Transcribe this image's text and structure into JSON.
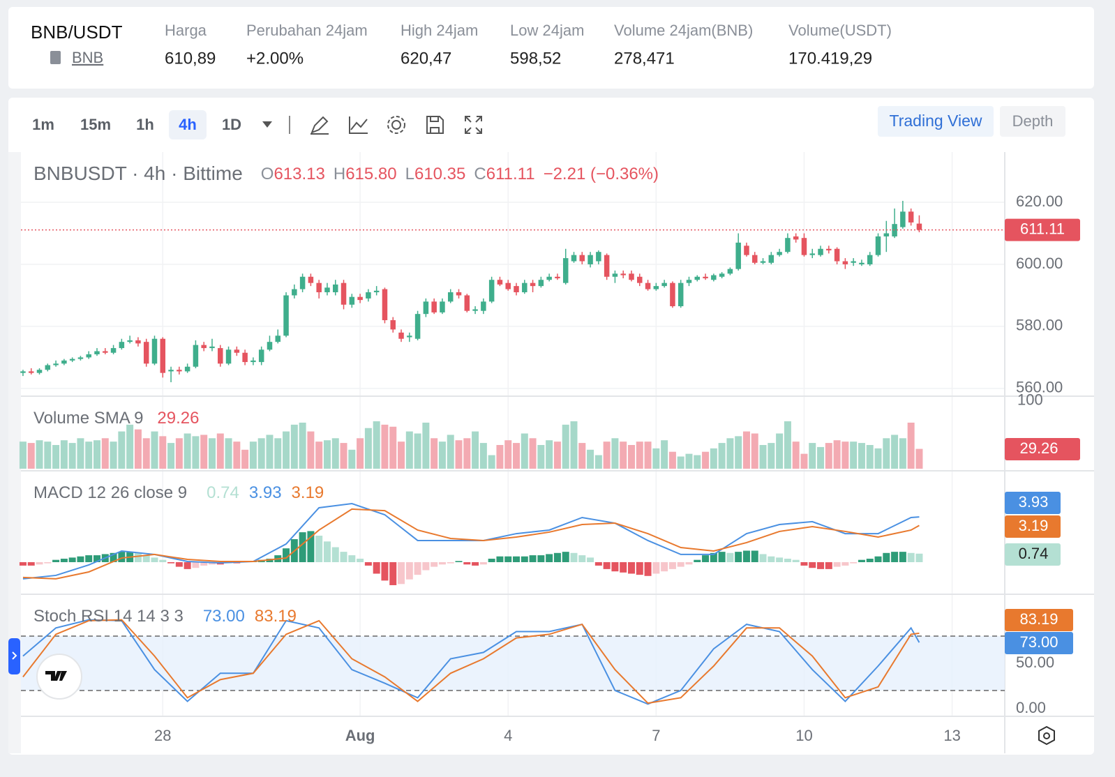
{
  "header": {
    "pair": "BNB/USDT",
    "coin": "BNB",
    "stats": [
      {
        "label": "Harga",
        "value": "610,89"
      },
      {
        "label": "Perubahan 24jam",
        "value": "+2.00%",
        "color": "#3db37f"
      },
      {
        "label": "High 24jam",
        "value": "620,47"
      },
      {
        "label": "Low 24jam",
        "value": "598,52"
      },
      {
        "label": "Volume 24jam(BNB)",
        "value": "278,471"
      },
      {
        "label": "Volume(USDT)",
        "value": "170.419,29"
      }
    ]
  },
  "toolbar": {
    "intervals": [
      "1m",
      "15m",
      "1h",
      "4h",
      "1D"
    ],
    "active_index": 3,
    "tabs": [
      "Trading View",
      "Depth"
    ]
  },
  "chart_data": {
    "type": "candlestick",
    "title": "BNBUSDT · 4h · Bittime",
    "legend": [
      {
        "key": "O",
        "value": "613.13"
      },
      {
        "key": "H",
        "value": "615.80"
      },
      {
        "key": "L",
        "value": "610.35"
      },
      {
        "key": "C",
        "value": "611.11"
      }
    ],
    "change": "−2.21 (−0.36%)",
    "colors": {
      "up": "#3fae8c",
      "down": "#e5545f",
      "volume_up": "#a6d8c9",
      "volume_down": "#f3aab2"
    },
    "xlim": [
      -0.25,
      119.4
    ],
    "xticks": [
      {
        "value": 17,
        "label": "28"
      },
      {
        "value": 41,
        "label": "Aug"
      },
      {
        "value": 59,
        "label": "4"
      },
      {
        "value": 77,
        "label": "7"
      },
      {
        "value": 95,
        "label": "10"
      },
      {
        "value": 113,
        "label": "13"
      }
    ],
    "ylim": [
      557.5,
      636.2
    ],
    "yticks": [
      {
        "value": 560,
        "label": "560.00"
      },
      {
        "value": 580,
        "label": "580.00"
      },
      {
        "value": 600,
        "label": "600.00"
      },
      {
        "value": 620,
        "label": "620.00"
      }
    ],
    "last_price": {
      "value": 611.11,
      "label": "611.11"
    },
    "ohlc": [
      [
        565,
        566,
        564,
        565.5
      ],
      [
        565.5,
        566.5,
        564.5,
        565
      ],
      [
        565,
        566.5,
        564.5,
        566
      ],
      [
        566,
        568,
        565.5,
        567.5
      ],
      [
        567.5,
        569,
        567,
        568
      ],
      [
        568,
        569.5,
        567.5,
        569
      ],
      [
        569,
        570,
        568.5,
        569.5
      ],
      [
        569.5,
        570.5,
        569,
        570
      ],
      [
        570,
        572,
        569.5,
        571
      ],
      [
        571,
        573,
        570.5,
        572
      ],
      [
        572,
        573,
        571,
        571.5
      ],
      [
        571.5,
        574,
        571,
        573
      ],
      [
        573,
        576,
        572.5,
        575
      ],
      [
        575,
        577,
        574.5,
        575.5
      ],
      [
        575.5,
        576.5,
        573.5,
        574.5
      ],
      [
        575,
        576,
        567,
        568
      ],
      [
        568,
        577,
        567.5,
        576
      ],
      [
        576,
        576.5,
        563.5,
        565
      ],
      [
        565.5,
        567,
        562,
        566
      ],
      [
        566,
        567,
        564.5,
        565.5
      ],
      [
        565.5,
        568,
        565,
        567
      ],
      [
        567,
        575.5,
        566.5,
        574
      ],
      [
        574,
        575,
        572,
        573
      ],
      [
        573,
        576,
        572,
        573.5
      ],
      [
        573,
        574,
        567,
        568
      ],
      [
        568,
        573.5,
        567.5,
        572.5
      ],
      [
        572.5,
        573.5,
        570.5,
        571.5
      ],
      [
        571.5,
        572.5,
        567.5,
        568.5
      ],
      [
        568.5,
        570,
        567.5,
        569
      ],
      [
        568.5,
        573.5,
        567.5,
        572.5
      ],
      [
        572.5,
        577,
        572,
        575
      ],
      [
        575,
        579,
        574.5,
        577
      ],
      [
        577,
        591,
        576.5,
        590
      ],
      [
        590,
        593.5,
        589,
        592
      ],
      [
        592,
        597,
        591,
        596
      ],
      [
        596,
        597,
        593,
        594
      ],
      [
        594,
        595,
        589,
        591
      ],
      [
        591,
        594,
        590,
        592.5
      ],
      [
        591,
        595,
        590,
        593.5
      ],
      [
        594,
        595,
        585.5,
        587
      ],
      [
        587,
        590.5,
        586,
        589.5
      ],
      [
        589.5,
        590.5,
        587.5,
        588.5
      ],
      [
        589,
        592,
        588,
        591
      ],
      [
        591,
        593,
        590,
        591.5
      ],
      [
        592,
        592.5,
        581,
        582
      ],
      [
        582,
        583,
        578,
        579
      ],
      [
        578,
        579,
        575,
        576
      ],
      [
        576.5,
        578,
        575,
        577
      ],
      [
        576,
        585,
        575.5,
        584
      ],
      [
        584,
        589,
        583,
        588
      ],
      [
        588,
        589,
        584,
        584.5
      ],
      [
        584.5,
        589,
        584,
        588
      ],
      [
        588,
        592,
        587.5,
        591
      ],
      [
        591,
        592,
        589,
        590
      ],
      [
        590,
        590.5,
        584.5,
        585
      ],
      [
        585,
        586.5,
        584,
        585.5
      ],
      [
        585,
        589,
        584,
        588
      ],
      [
        588,
        596,
        587.5,
        595
      ],
      [
        595,
        596,
        593,
        593.5
      ],
      [
        594,
        595,
        591.5,
        592
      ],
      [
        593,
        594,
        590,
        591
      ],
      [
        591,
        595,
        590.5,
        594
      ],
      [
        594,
        595,
        591,
        593
      ],
      [
        593,
        596,
        592.5,
        595
      ],
      [
        595,
        597,
        594.5,
        596
      ],
      [
        596,
        597,
        595,
        595.5
      ],
      [
        594,
        605,
        593.5,
        602
      ],
      [
        601,
        604,
        600.5,
        603
      ],
      [
        603,
        604,
        600,
        601
      ],
      [
        600,
        604,
        599,
        603
      ],
      [
        601,
        604.5,
        600,
        604
      ],
      [
        603,
        603.5,
        595,
        596
      ],
      [
        596,
        598,
        594,
        597
      ],
      [
        597,
        598,
        595.5,
        596.5
      ],
      [
        597,
        598,
        594.5,
        595
      ],
      [
        596,
        597,
        593,
        594
      ],
      [
        594,
        595,
        591.5,
        592
      ],
      [
        592,
        594,
        591.5,
        593
      ],
      [
        593,
        595,
        592.5,
        594
      ],
      [
        594,
        594.5,
        586,
        586.5
      ],
      [
        586.5,
        595,
        586,
        594
      ],
      [
        594,
        596,
        593,
        595
      ],
      [
        595,
        596.5,
        594.5,
        596
      ],
      [
        596,
        597,
        595,
        595.5
      ],
      [
        595,
        597,
        594.5,
        596.5
      ],
      [
        596,
        597.5,
        595.5,
        597
      ],
      [
        597,
        599,
        596.5,
        598.5
      ],
      [
        598.5,
        610,
        598,
        607
      ],
      [
        606,
        607,
        602.5,
        603
      ],
      [
        603,
        604,
        600,
        600.5
      ],
      [
        600.5,
        602,
        600,
        601
      ],
      [
        600.5,
        604,
        600,
        603
      ],
      [
        603,
        605,
        602.5,
        604
      ],
      [
        604,
        610,
        603.5,
        608.5
      ],
      [
        609,
        610,
        607,
        608
      ],
      [
        608.5,
        610,
        602.5,
        603
      ],
      [
        603,
        605,
        602,
        603.5
      ],
      [
        603,
        606,
        602.5,
        605
      ],
      [
        605,
        606,
        603.5,
        604.5
      ],
      [
        605,
        605.5,
        600,
        601
      ],
      [
        601,
        602,
        598.5,
        600
      ],
      [
        600.5,
        602,
        599.5,
        601
      ],
      [
        600,
        601.5,
        599.5,
        600.5
      ],
      [
        600,
        604,
        599.5,
        603
      ],
      [
        603,
        610,
        602.5,
        609
      ],
      [
        609,
        614,
        604,
        610
      ],
      [
        609,
        618,
        608.5,
        613
      ],
      [
        612,
        620.47,
        611.5,
        617
      ],
      [
        617,
        618,
        612.5,
        613.5
      ],
      [
        613.13,
        615.8,
        610.35,
        611.11
      ]
    ],
    "volume": {
      "title": "Volume SMA 9",
      "value_label": "29.26",
      "ylim": [
        0,
        105
      ],
      "yticks": [
        100
      ],
      "values": [
        40,
        38,
        42,
        40,
        35,
        42,
        38,
        45,
        40,
        42,
        45,
        40,
        55,
        65,
        58,
        45,
        55,
        48,
        38,
        45,
        52,
        48,
        50,
        45,
        52,
        45,
        40,
        28,
        40,
        45,
        50,
        45,
        55,
        65,
        68,
        55,
        40,
        42,
        45,
        38,
        28,
        45,
        60,
        70,
        65,
        62,
        40,
        55,
        52,
        68,
        45,
        40,
        50,
        42,
        45,
        55,
        38,
        20,
        35,
        42,
        38,
        52,
        45,
        35,
        42,
        40,
        65,
        70,
        38,
        28,
        20,
        40,
        45,
        40,
        35,
        40,
        40,
        30,
        42,
        25,
        18,
        22,
        20,
        25,
        30,
        38,
        45,
        48,
        55,
        52,
        35,
        38,
        52,
        70,
        40,
        22,
        38,
        32,
        38,
        42,
        40,
        40,
        38,
        35,
        30,
        45,
        50,
        45,
        68,
        29.26
      ]
    },
    "macd": {
      "title": "MACD 12 26 close 9",
      "ylim": [
        -2.79,
        7.88
      ],
      "hist_label": "0.74",
      "hist_colors": [
        "#2e9c78",
        "#b4e0d3",
        "#e5545f",
        "#f7c6cb"
      ],
      "hist": [
        -0.3,
        -0.3,
        -0.2,
        -0.1,
        0.2,
        0.3,
        0.4,
        0.5,
        0.6,
        0.6,
        0.7,
        0.8,
        0.9,
        0.9,
        0.8,
        0.6,
        0.4,
        0.2,
        -0.1,
        -0.4,
        -0.6,
        -0.5,
        -0.3,
        -0.2,
        -0.2,
        -0.1,
        -0.1,
        0.1,
        0.1,
        0.2,
        0.3,
        0.6,
        1.2,
        2.0,
        2.6,
        2.7,
        2.3,
        1.8,
        1.3,
        0.9,
        0.6,
        0.3,
        -0.3,
        -1.0,
        -1.6,
        -2.0,
        -1.9,
        -1.5,
        -1.1,
        -0.7,
        -0.4,
        -0.2,
        -0.1,
        0.1,
        -0.2,
        -0.3,
        -0.2,
        0.3,
        0.5,
        0.5,
        0.5,
        0.5,
        0.6,
        0.6,
        0.7,
        0.8,
        0.9,
        0.8,
        0.6,
        0.4,
        -0.3,
        -0.6,
        -0.8,
        -0.9,
        -1.0,
        -1.1,
        -1.2,
        -1.0,
        -0.8,
        -0.6,
        -0.4,
        -0.2,
        0.2,
        0.6,
        0.8,
        0.9,
        0.8,
        0.9,
        1.0,
        1.0,
        0.7,
        0.5,
        0.4,
        0.3,
        0.2,
        -0.3,
        -0.5,
        -0.6,
        -0.6,
        -0.4,
        -0.3,
        -0.1,
        0.2,
        0.3,
        0.5,
        0.8,
        0.9,
        0.9,
        0.8,
        0.74
      ],
      "x": [
        0,
        4,
        8,
        12,
        16,
        20,
        24,
        28,
        32,
        36,
        40,
        44,
        48,
        52,
        56,
        60,
        64,
        68,
        72,
        76,
        80,
        84,
        88,
        92,
        96,
        100,
        104,
        108,
        109
      ],
      "series": [
        {
          "color": "#4a90e2",
          "value_label": "3.93",
          "values": [
            -1.45,
            -1.15,
            -0.24,
            0.97,
            0.67,
            0.06,
            -0.06,
            0.06,
            1.58,
            4.73,
            5.09,
            4.12,
            1.88,
            1.88,
            1.88,
            2.48,
            2.79,
            3.88,
            3.39,
            1.88,
            0.67,
            0.67,
            2.48,
            3.27,
            3.52,
            2.48,
            2.48,
            3.88,
            3.93
          ]
        },
        {
          "color": "#e8792e",
          "value_label": "3.19",
          "values": [
            -1.33,
            -1.45,
            -0.85,
            0.36,
            0.67,
            0.24,
            0.06,
            0.06,
            0.36,
            2.79,
            4.61,
            4.48,
            2.79,
            2.06,
            1.88,
            2.18,
            2.61,
            3.27,
            3.39,
            2.48,
            1.27,
            0.97,
            1.7,
            2.67,
            3.09,
            2.67,
            2.18,
            2.79,
            3.19
          ]
        }
      ]
    },
    "stoch": {
      "title": "Stoch RSI 14 14 3 3",
      "ylim": [
        -8.5,
        125.4
      ],
      "levels": [
        20,
        80
      ],
      "yticks": [
        {
          "value": 0,
          "label": "0.00"
        },
        {
          "value": 50,
          "label": "50.00"
        }
      ],
      "x": [
        0,
        4,
        8,
        12,
        16,
        20,
        24,
        28,
        32,
        36,
        40,
        44,
        48,
        52,
        56,
        60,
        64,
        68,
        72,
        76,
        80,
        84,
        88,
        92,
        96,
        100,
        104,
        108,
        109
      ],
      "series": [
        {
          "color": "#4a90e2",
          "value_label": "73.00",
          "values": [
            58,
            89,
            98,
            97,
            43,
            8,
            39,
            39,
            97,
            89,
            43,
            28,
            12,
            55,
            62,
            85,
            85,
            93,
            20,
            5,
            20,
            66,
            93,
            85,
            43,
            8,
            47,
            89,
            73
          ]
        },
        {
          "color": "#e8792e",
          "value_label": "83.19",
          "values": [
            35,
            82,
            97,
            98,
            58,
            12,
            32,
            39,
            82,
            97,
            55,
            35,
            8,
            39,
            55,
            78,
            82,
            93,
            43,
            6,
            12,
            47,
            89,
            89,
            58,
            12,
            24,
            82,
            83.19
          ]
        }
      ]
    }
  }
}
